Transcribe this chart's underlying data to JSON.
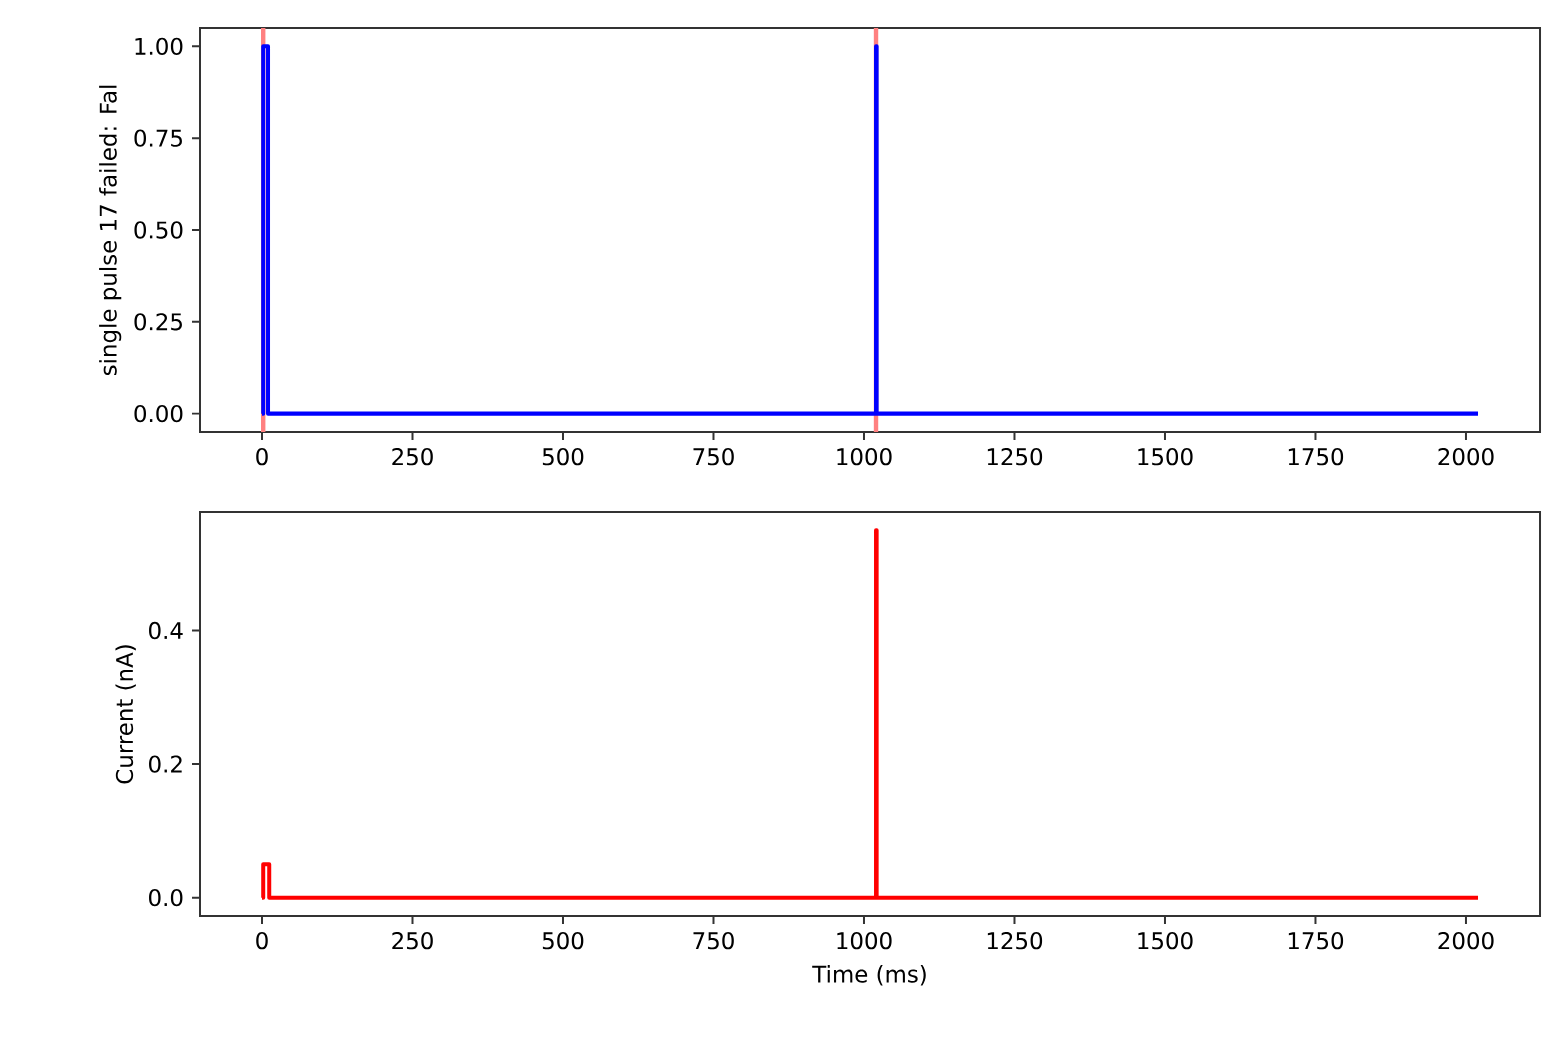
{
  "chart_data": [
    {
      "type": "line",
      "ylabel": "single pulse 17 failed: Fal",
      "xlim": [
        -103,
        2123
      ],
      "ylim": [
        -0.05,
        1.05
      ],
      "xticks": [
        0,
        250,
        500,
        750,
        1000,
        1250,
        1500,
        1750,
        2000
      ],
      "yticks": [
        {
          "value": 0,
          "label": "0.00"
        },
        {
          "value": 0.25,
          "label": "0.25"
        },
        {
          "value": 0.5,
          "label": "0.50"
        },
        {
          "value": 0.75,
          "label": "0.75"
        },
        {
          "value": 1,
          "label": "1.00"
        }
      ],
      "series": [
        {
          "color": "#0000ff",
          "x": [
            0,
            2,
            2,
            10,
            10,
            1020,
            1020,
            1021,
            1021,
            2020
          ],
          "values": [
            0,
            0,
            1,
            1,
            0,
            0,
            1,
            1,
            0,
            0
          ]
        }
      ],
      "ref_lines": [
        {
          "axis": "x",
          "value": 2,
          "color": "#ff8080"
        },
        {
          "axis": "x",
          "value": 1020,
          "color": "#ff8080"
        }
      ],
      "line_style": "solid",
      "grid": false
    },
    {
      "type": "line",
      "xlabel": "Time (ms)",
      "ylabel": "Current (nA)",
      "xlim": [
        -103,
        2123
      ],
      "ylim": [
        -0.0275,
        0.5775
      ],
      "xticks": [
        0,
        250,
        500,
        750,
        1000,
        1250,
        1500,
        1750,
        2000
      ],
      "yticks": [
        {
          "value": 0,
          "label": "0.0"
        },
        {
          "value": 0.2,
          "label": "0.2"
        },
        {
          "value": 0.4,
          "label": "0.4"
        }
      ],
      "series": [
        {
          "color": "#ff0000",
          "x": [
            0,
            2,
            2,
            12,
            12,
            1020,
            1020,
            1021,
            1021,
            2020
          ],
          "values": [
            0,
            0,
            0.05,
            0.05,
            0,
            0,
            0.55,
            0.55,
            0,
            0
          ]
        }
      ],
      "line_style": "solid",
      "grid": false
    }
  ]
}
